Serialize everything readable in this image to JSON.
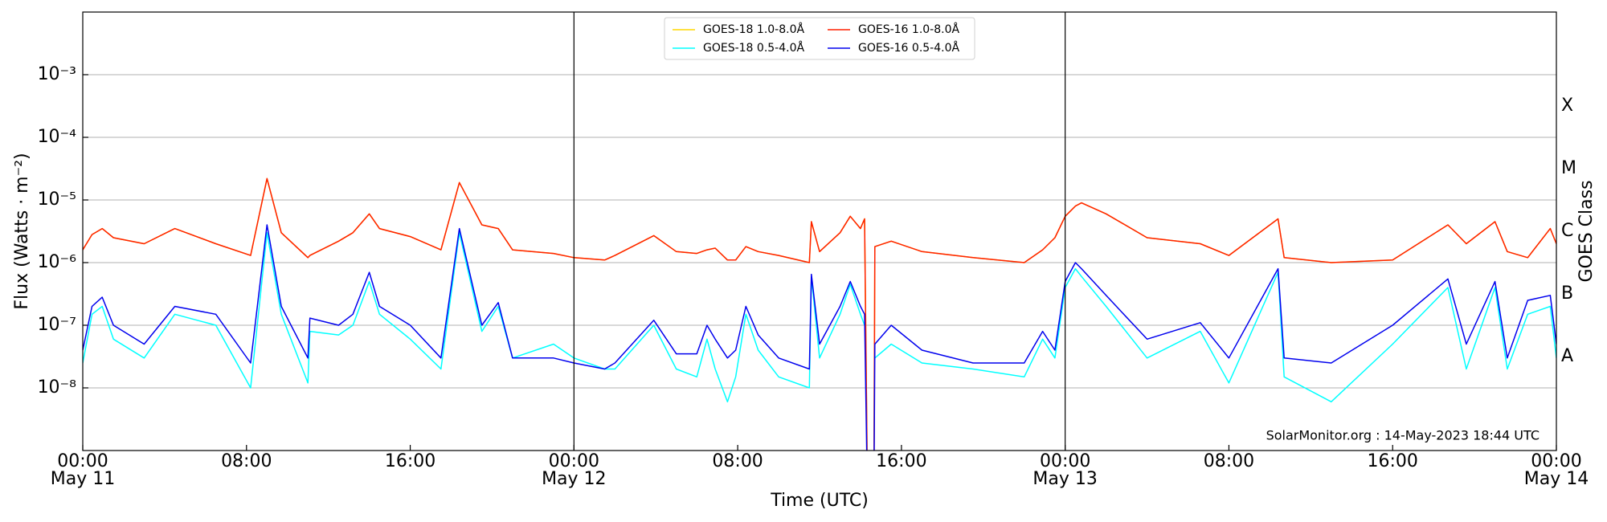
{
  "chart_data": {
    "type": "line",
    "xlabel": "Time (UTC)",
    "ylabel": "Flux (Watts · m⁻²)",
    "y2label": "GOES Class",
    "annotation": "SolarMonitor.org : 14-May-2023 18:44 UTC",
    "yscale": "log",
    "grid": true,
    "legend": "upper center",
    "day_lines": [
      24,
      48
    ],
    "xlim": [
      0,
      72
    ],
    "xticks": [
      {
        "value": 0,
        "label": [
          "00:00",
          "May 11"
        ]
      },
      {
        "value": 8,
        "label": "08:00"
      },
      {
        "value": 16,
        "label": "16:00"
      },
      {
        "value": 24,
        "label": [
          "00:00",
          "May 12"
        ]
      },
      {
        "value": 32,
        "label": "08:00"
      },
      {
        "value": 40,
        "label": "16:00"
      },
      {
        "value": 48,
        "label": [
          "00:00",
          "May 13"
        ]
      },
      {
        "value": 56,
        "label": "08:00"
      },
      {
        "value": 64,
        "label": "16:00"
      },
      {
        "value": 72,
        "label": [
          "00:00",
          "May 14"
        ]
      }
    ],
    "ylim": [
      1e-09,
      0.01
    ],
    "yticks": [
      {
        "value": 1e-08,
        "label": "10⁻⁸"
      },
      {
        "value": 1e-07,
        "label": "10⁻⁷"
      },
      {
        "value": 1e-06,
        "label": "10⁻⁶"
      },
      {
        "value": 1e-05,
        "label": "10⁻⁵"
      },
      {
        "value": 0.0001,
        "label": "10⁻⁴"
      },
      {
        "value": 0.001,
        "label": "10⁻³"
      }
    ],
    "classes": [
      {
        "value": 1e-08,
        "label": "A"
      },
      {
        "value": 1e-07,
        "label": "B"
      },
      {
        "value": 1e-06,
        "label": "C"
      },
      {
        "value": 1e-05,
        "label": "M"
      },
      {
        "value": 0.0001,
        "label": "X"
      }
    ],
    "x": [
      0,
      0.45,
      0.95,
      1.5,
      3,
      4.5,
      6.5,
      8.2,
      9,
      9.7,
      11,
      11.1,
      12.5,
      13.2,
      14,
      14.5,
      16,
      17.5,
      18.4,
      19.5,
      20.3,
      21,
      23,
      24,
      25.5,
      26,
      27.9,
      29,
      30,
      30.5,
      30.9,
      31.5,
      31.9,
      32.4,
      33,
      34,
      35.5,
      35.6,
      36,
      37,
      37.5,
      38,
      38.2,
      38.35,
      38.65,
      38.7,
      39.5,
      41,
      43.5,
      46,
      46.9,
      47.5,
      48,
      48.5,
      48.8,
      50,
      52,
      54.6,
      56,
      58.4,
      58.7,
      61,
      64,
      66.7,
      67.6,
      69,
      69.6,
      70.6,
      71.7,
      72
    ],
    "series": [
      {
        "name": "GOES-18 1.0-8.0Å",
        "color": "#ffd700",
        "values": [
          1.6e-06,
          2.8e-06,
          3.5e-06,
          2.5e-06,
          2e-06,
          3.5e-06,
          2e-06,
          1.3e-06,
          2.2e-05,
          3e-06,
          1.2e-06,
          1.3e-06,
          2.2e-06,
          3e-06,
          6e-06,
          3.5e-06,
          2.6e-06,
          1.6e-06,
          1.9e-05,
          4e-06,
          3.5e-06,
          1.6e-06,
          1.4e-06,
          1.2e-06,
          1.1e-06,
          1.3e-06,
          2.7e-06,
          1.5e-06,
          1.4e-06,
          1.6e-06,
          1.7e-06,
          1.1e-06,
          1.1e-06,
          1.8e-06,
          1.5e-06,
          1.3e-06,
          1e-06,
          4.5e-06,
          1.5e-06,
          3e-06,
          5.5e-06,
          3.5e-06,
          5e-06,
          1e-10,
          1e-10,
          1.8e-06,
          2.2e-06,
          1.5e-06,
          1.2e-06,
          1e-06,
          1.6e-06,
          2.5e-06,
          5.5e-06,
          8e-06,
          9e-06,
          6e-06,
          2.5e-06,
          2e-06,
          1.3e-06,
          5e-06,
          1.2e-06,
          1e-06,
          1.1e-06,
          4e-06,
          2e-06,
          4.5e-06,
          1.5e-06,
          1.2e-06,
          3.5e-06,
          2e-06
        ]
      },
      {
        "name": "GOES-18 0.5-4.0Å",
        "color": "#00ffff",
        "values": [
          2.5e-08,
          1.5e-07,
          2e-07,
          6e-08,
          3e-08,
          1.5e-07,
          1e-07,
          1e-08,
          3e-06,
          1.5e-07,
          1.2e-08,
          8e-08,
          7e-08,
          1e-07,
          5e-07,
          1.5e-07,
          6e-08,
          2e-08,
          3e-06,
          8e-08,
          2e-07,
          3e-08,
          5e-08,
          3e-08,
          2e-08,
          2e-08,
          1e-07,
          2e-08,
          1.5e-08,
          6e-08,
          2e-08,
          6e-09,
          1.5e-08,
          1.5e-07,
          4e-08,
          1.5e-08,
          1e-08,
          6e-07,
          3e-08,
          1.5e-07,
          4.5e-07,
          1.5e-07,
          1e-07,
          null,
          null,
          3e-08,
          5e-08,
          2.5e-08,
          2e-08,
          1.5e-08,
          6e-08,
          3e-08,
          4e-07,
          8e-07,
          6e-07,
          2e-07,
          3e-08,
          8e-08,
          1.2e-08,
          7e-07,
          1.5e-08,
          6e-09,
          5e-08,
          4e-07,
          2e-08,
          4e-07,
          2e-08,
          1.5e-07,
          2e-07,
          3e-08
        ]
      },
      {
        "name": "GOES-16 1.0-8.0Å",
        "color": "#ff2000",
        "values": [
          1.6e-06,
          2.8e-06,
          3.5e-06,
          2.5e-06,
          2e-06,
          3.5e-06,
          2e-06,
          1.3e-06,
          2.2e-05,
          3e-06,
          1.2e-06,
          1.3e-06,
          2.2e-06,
          3e-06,
          6e-06,
          3.5e-06,
          2.6e-06,
          1.6e-06,
          1.9e-05,
          4e-06,
          3.5e-06,
          1.6e-06,
          1.4e-06,
          1.2e-06,
          1.1e-06,
          1.3e-06,
          2.7e-06,
          1.5e-06,
          1.4e-06,
          1.6e-06,
          1.7e-06,
          1.1e-06,
          1.1e-06,
          1.8e-06,
          1.5e-06,
          1.3e-06,
          1e-06,
          4.5e-06,
          1.5e-06,
          3e-06,
          5.5e-06,
          3.5e-06,
          5e-06,
          1e-10,
          1e-10,
          1.8e-06,
          2.2e-06,
          1.5e-06,
          1.2e-06,
          1e-06,
          1.6e-06,
          2.5e-06,
          5.5e-06,
          8e-06,
          9e-06,
          6e-06,
          2.5e-06,
          2e-06,
          1.3e-06,
          5e-06,
          1.2e-06,
          1e-06,
          1.1e-06,
          4e-06,
          2e-06,
          4.5e-06,
          1.5e-06,
          1.2e-06,
          3.5e-06,
          2e-06
        ]
      },
      {
        "name": "GOES-16 0.5-4.0Å",
        "color": "#0000ee",
        "values": [
          4e-08,
          2e-07,
          2.8e-07,
          1e-07,
          5e-08,
          2e-07,
          1.5e-07,
          2.5e-08,
          4e-06,
          2e-07,
          3e-08,
          1.3e-07,
          1e-07,
          1.5e-07,
          7e-07,
          2e-07,
          1e-07,
          3e-08,
          3.5e-06,
          1e-07,
          2.3e-07,
          3e-08,
          3e-08,
          2.5e-08,
          2e-08,
          2.5e-08,
          1.2e-07,
          3.5e-08,
          3.5e-08,
          1e-07,
          6e-08,
          3e-08,
          4e-08,
          2e-07,
          7e-08,
          3e-08,
          2e-08,
          6.5e-07,
          5e-08,
          2e-07,
          5e-07,
          2e-07,
          1.5e-07,
          1e-10,
          1e-10,
          5e-08,
          1e-07,
          4e-08,
          2.5e-08,
          2.5e-08,
          8e-08,
          4e-08,
          5e-07,
          1e-06,
          8e-07,
          3e-07,
          6e-08,
          1.1e-07,
          3e-08,
          8e-07,
          3e-08,
          2.5e-08,
          1e-07,
          5.5e-07,
          5e-08,
          5e-07,
          3e-08,
          2.5e-07,
          3e-07,
          5e-08
        ]
      }
    ]
  }
}
